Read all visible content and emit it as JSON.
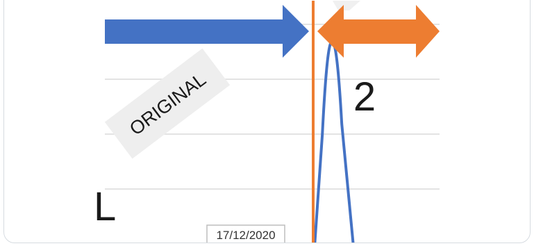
{
  "chart_data": {
    "type": "line",
    "title": "",
    "xlabel": "",
    "ylabel": "",
    "grid": true,
    "legend": "none",
    "annotations": {
      "original_label": "ORIGINAL",
      "number_label": "2",
      "date_label": "17/12/2020",
      "left_glyph": "L"
    },
    "series": [
      {
        "color": "#4472c4",
        "points": [
          {
            "x": 0.0,
            "y": 0.0
          },
          {
            "x": 0.2,
            "y": 0.55
          },
          {
            "x": 0.45,
            "y": 1.0
          },
          {
            "x": 0.7,
            "y": 0.6
          },
          {
            "x": 1.0,
            "y": 0.0
          }
        ]
      }
    ]
  },
  "colors": {
    "blue_arrow": "#4472c4",
    "orange_arrow": "#ed7d31",
    "orange_line": "#ed7d31",
    "gridline": "#e3e3e3",
    "label_bg": "#eeeeee",
    "text": "#1a1a1a"
  }
}
